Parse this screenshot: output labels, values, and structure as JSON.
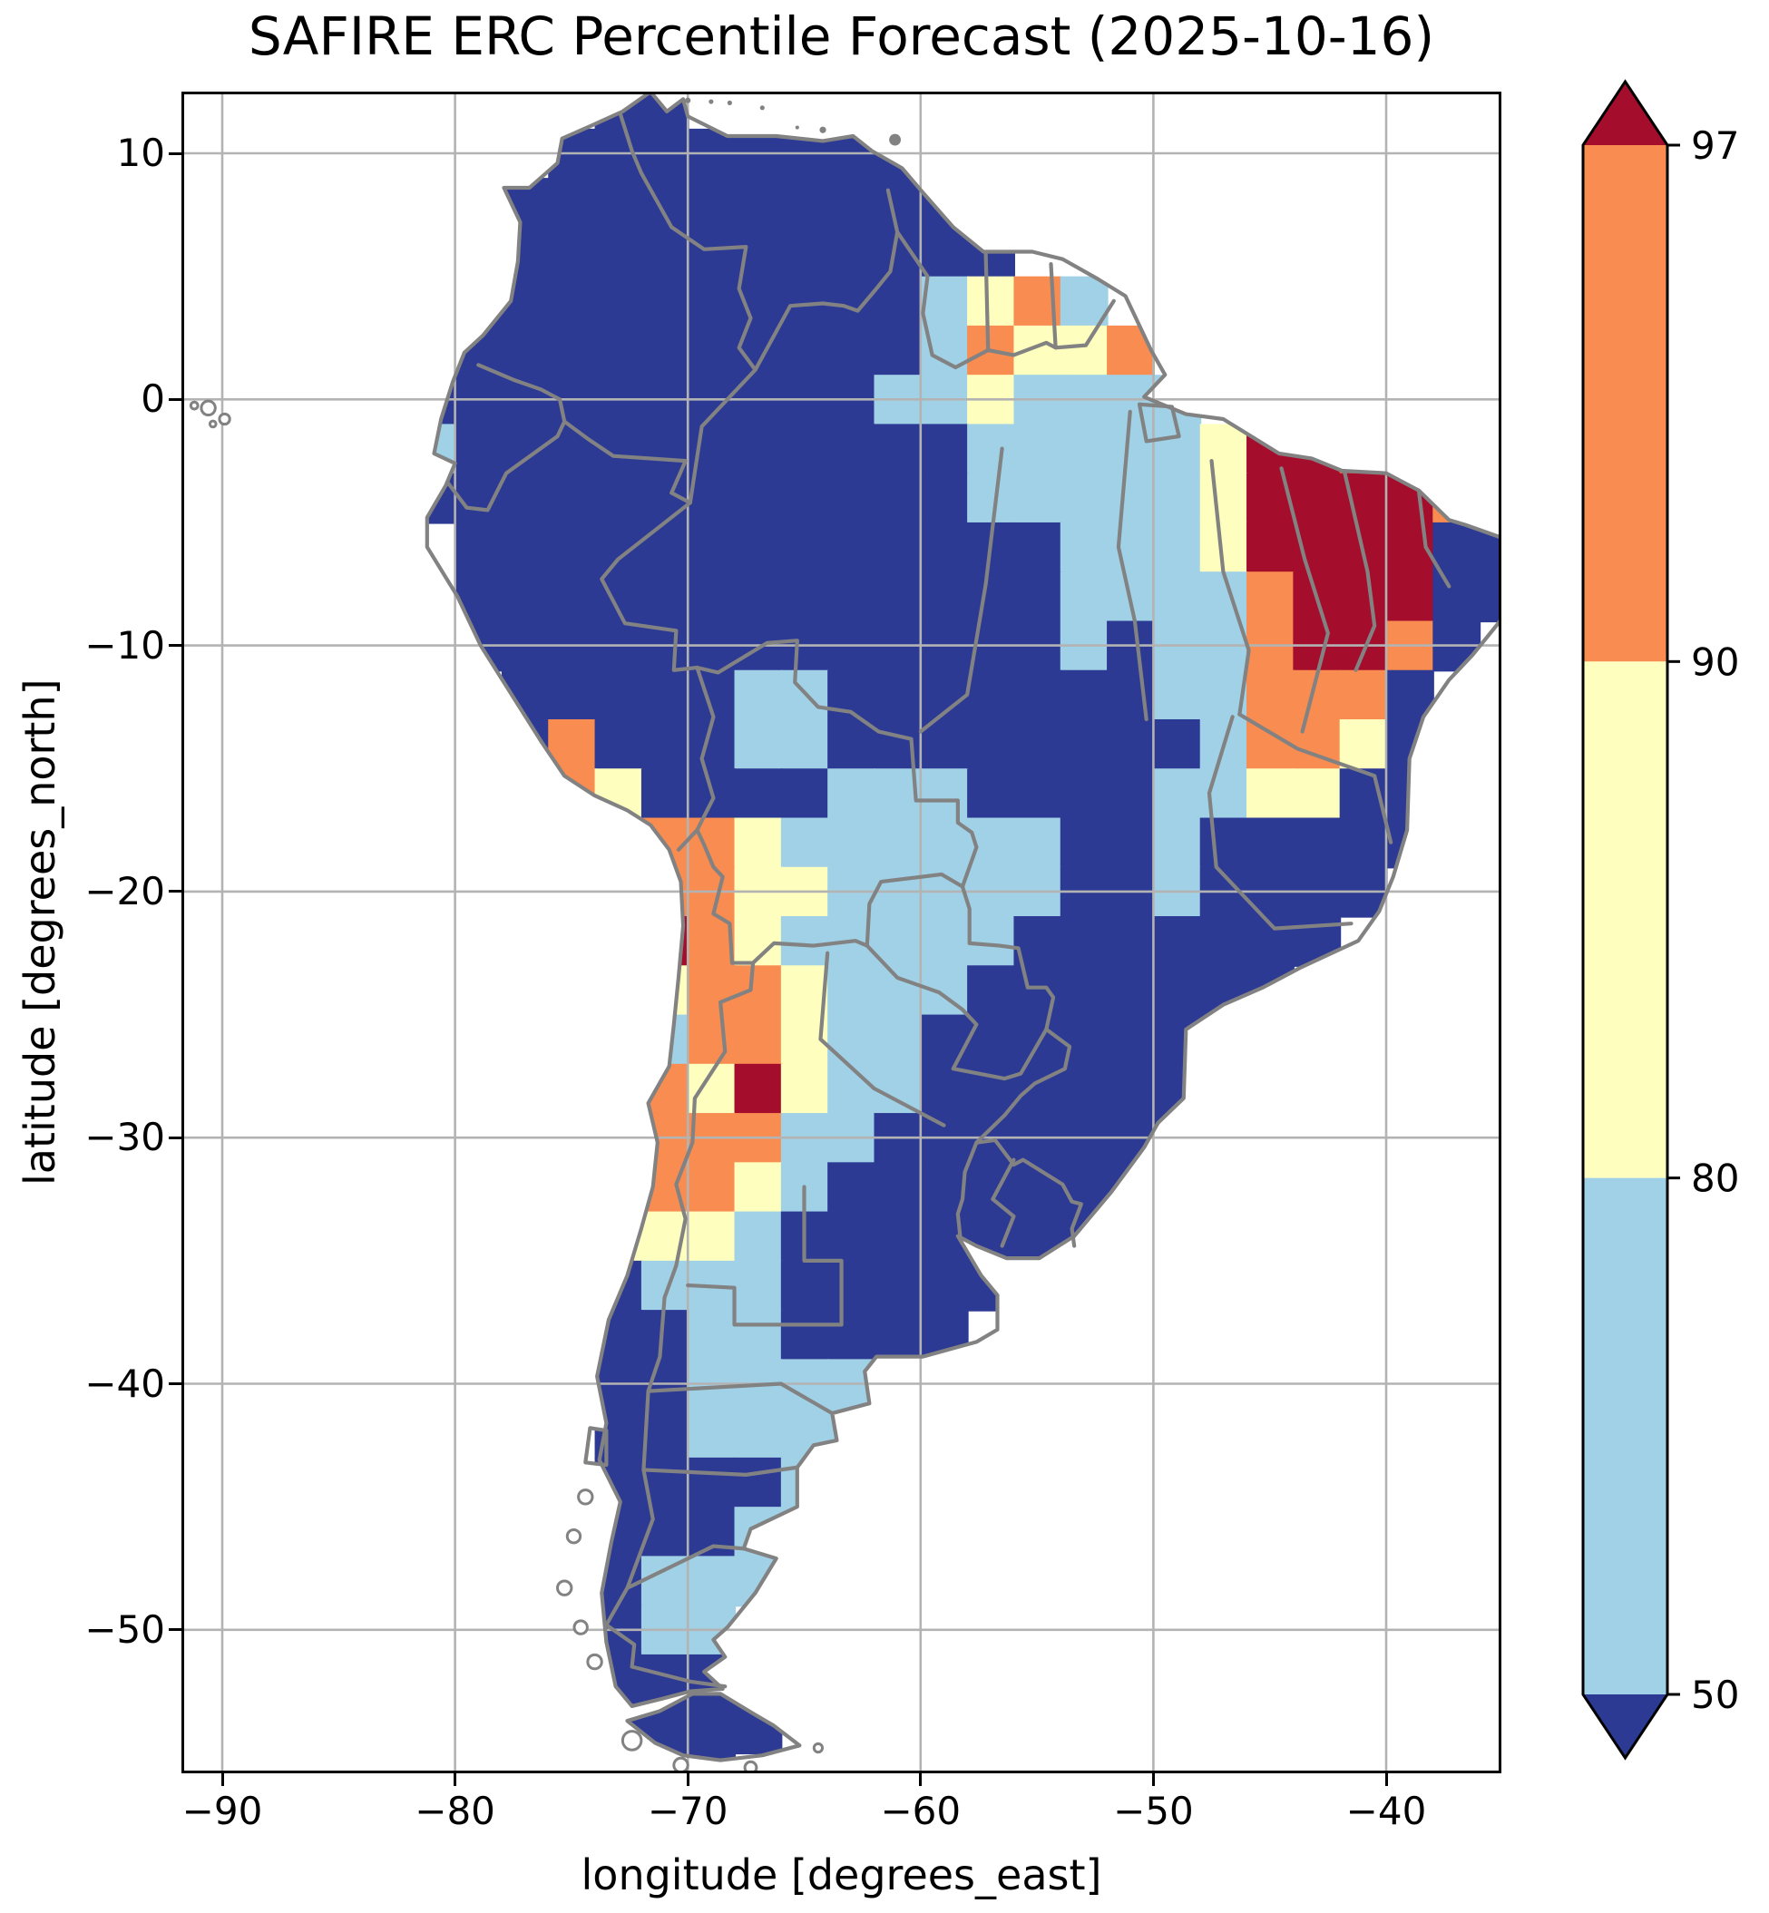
{
  "chart_data": {
    "type": "heatmap",
    "title": "SAFIRE ERC Percentile Forecast (2025-10-16)",
    "xlabel": "longitude [degrees_east]",
    "ylabel": "latitude [degrees_north]",
    "xlim": [
      -91.64,
      -35.17
    ],
    "ylim": [
      -55.72,
      12.4
    ],
    "grid": true,
    "x_ticks": [
      {
        "value": -90,
        "label": "−90"
      },
      {
        "value": -80,
        "label": "−80"
      },
      {
        "value": -70,
        "label": "−70"
      },
      {
        "value": -60,
        "label": "−60"
      },
      {
        "value": -50,
        "label": "−50"
      },
      {
        "value": -40,
        "label": "−40"
      }
    ],
    "y_ticks": [
      {
        "value": 10,
        "label": "10"
      },
      {
        "value": 0,
        "label": "0"
      },
      {
        "value": -10,
        "label": "−10"
      },
      {
        "value": -20,
        "label": "−20"
      },
      {
        "value": -30,
        "label": "−30"
      },
      {
        "value": -40,
        "label": "−40"
      },
      {
        "value": -50,
        "label": "−50"
      }
    ],
    "colorbar": {
      "orientation": "vertical",
      "position": "right",
      "extend": "both",
      "levels": [
        50,
        80,
        90,
        97
      ],
      "tick_labels": [
        "97",
        "90",
        "80",
        "50"
      ],
      "classes": [
        {
          "code": "1",
          "range": "< 50",
          "color": "#2c3a94"
        },
        {
          "code": "2",
          "range": "50–80",
          "color": "#a1d1e6"
        },
        {
          "code": "3",
          "range": "80–90",
          "color": "#feffbe"
        },
        {
          "code": "4",
          "range": "90–97",
          "color": "#f88c51"
        },
        {
          "code": "5",
          "range": "> 97",
          "color": "#a50d2d"
        }
      ]
    },
    "raster": {
      "description": "ERC percentile class on ~2 degree cells; codes: . = no data (ocean), 1 = <50, 2 = 50-80, 3 = 80-90, 4 = 90-97, 5 = >97",
      "origin_lon": -92,
      "origin_lat": 13,
      "cell_deg": 2,
      "rows": [
        ".........11..................",
        "........11111111.............",
        ".......1111111111............",
        "......111111111111...........",
        "......11111111112342.........",
        "......111111111124334........",
        ".....11111111112232222.......",
        ".....211111111111222223554...",
        ".....11111111111122222355554.",
        "......11111111111112223555511",
        "......11111111111112222455511",
        "......1111111111111212245541.",
        ".......11111221111111224441..",
        ".......14111221111111124431..",
        "........4311112221111223311..",
        "..........44322222211211111..",
        "..........4433222221121111...",
        "..........543222221111111....",
        "..........34432221111111.....",
        "..........2443221111111......",
        "..........435322111111.......",
        "..........444221111111.......",
        "..........44321111111........",
        ".........33321111111.........",
        ".........122211111...........",
        ".........11221111............",
        ".........112222..............",
        ".........112222..............",
        ".........11112...............",
        ".........11122...............",
        ".........1222................",
        ".........122.................",
        ".........111.................",
        ".........1111................",
        "..........11................."
      ]
    }
  },
  "styles": {
    "background": "#ffffff",
    "axis_color": "#000000",
    "gridline_color": "#b3b3b3",
    "land_border_color": "#828282",
    "ocean_color": "#ffffff"
  }
}
